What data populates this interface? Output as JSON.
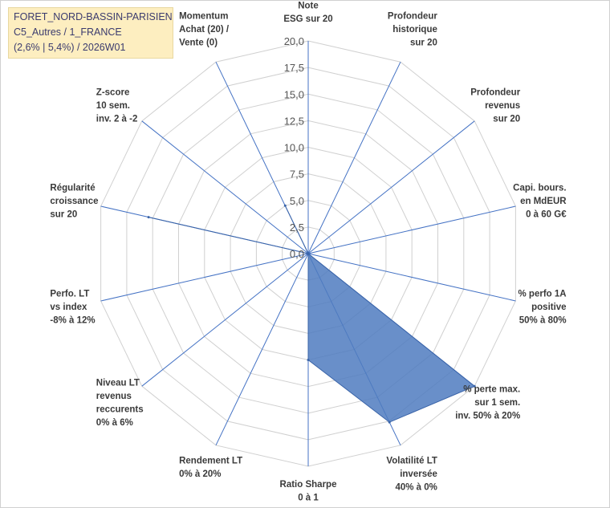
{
  "title_box": {
    "line1": "FORET_NORD-BASSIN-PARISIEN",
    "line2": "C5_Autres / 1_FRANCE",
    "line3": "(2,6% | 5,4%) / 2026W01"
  },
  "colors": {
    "fill": "#4f7bbf",
    "stroke": "#3a64a8",
    "spoke": "#4472c4",
    "grid": "#d0d0d0",
    "title_bg": "#fdeec0",
    "title_text": "#3b3b6e"
  },
  "chart_data": {
    "type": "radar",
    "title": "FORET_NORD-BASSIN-PARISIEN",
    "rmin": 0,
    "rmax": 20,
    "tick_step": 2.5,
    "tick_labels": [
      "0,0",
      "2,5",
      "5,0",
      "7,5",
      "10,0",
      "12,5",
      "15,0",
      "17,5",
      "20,0"
    ],
    "axes": [
      {
        "label": [
          "Note",
          "ESG sur 20"
        ],
        "value": 0
      },
      {
        "label": [
          "Profondeur",
          "historique",
          "sur 20"
        ],
        "value": 0
      },
      {
        "label": [
          "Profondeur",
          "revenus",
          "sur 20"
        ],
        "value": 0
      },
      {
        "label": [
          "Capi. bours.",
          "en MdEUR",
          "0 à 60 G€"
        ],
        "value": 0
      },
      {
        "label": [
          "% perfo 1A",
          "positive",
          "50% à 80%"
        ],
        "value": 0
      },
      {
        "label": [
          "% perte max.",
          "sur 1 sem.",
          "inv. 50% à 20%"
        ],
        "value": 20
      },
      {
        "label": [
          "Volatilité LT",
          "inversée",
          "40% à 0%"
        ],
        "value": 17.6
      },
      {
        "label": [
          "Ratio Sharpe",
          "0 à 1"
        ],
        "value": 10
      },
      {
        "label": [
          "Rendement LT",
          "0% à 20%"
        ],
        "value": 0
      },
      {
        "label": [
          "Niveau LT",
          "revenus",
          "reccurents",
          "0% à 6%"
        ],
        "value": 0
      },
      {
        "label": [
          "Perfo. LT",
          "vs index",
          "-8% à 12%"
        ],
        "value": 0
      },
      {
        "label": [
          "Régularité",
          "croissance",
          "sur 20"
        ],
        "value": 15.4
      },
      {
        "label": [
          "Z-score",
          "10 sem.",
          "inv. 2 à -2"
        ],
        "value": 0
      },
      {
        "label": [
          "Momentum",
          "Achat (20) /",
          "Vente (0)"
        ],
        "value": 5
      }
    ]
  }
}
